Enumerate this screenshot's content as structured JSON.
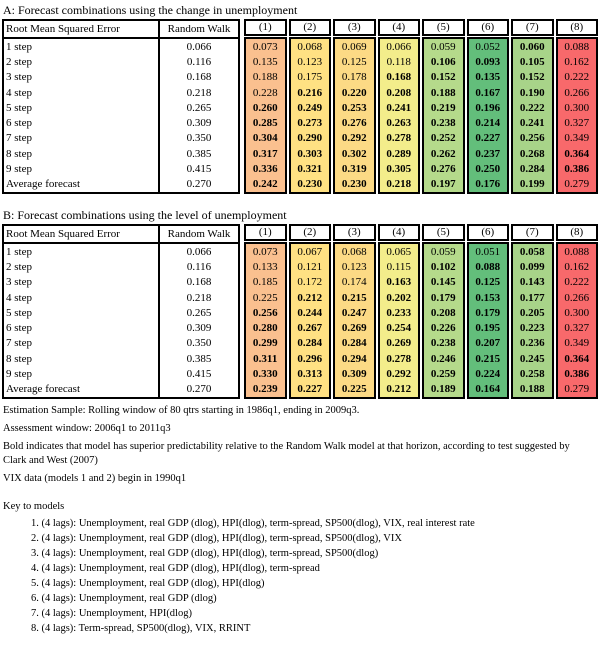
{
  "tables": [
    {
      "id": "A",
      "title": "A: Forecast combinations using the change in unemployment",
      "header": {
        "col1": "Root Mean Squared Error",
        "col2": "Random Walk"
      },
      "row_labels": [
        "1 step",
        "2 step",
        "3 step",
        "4 step",
        "5 step",
        "6 step",
        "7 step",
        "8 step",
        "9 step",
        "Average forecast"
      ],
      "random_walk": [
        "0.066",
        "0.116",
        "0.168",
        "0.218",
        "0.265",
        "0.309",
        "0.350",
        "0.385",
        "0.415",
        "0.270"
      ],
      "model_columns": [
        {
          "label": "(1)",
          "color": "#FAC08F",
          "values": [
            "0.073",
            "0.135",
            "0.188",
            "0.228",
            "0.260",
            "0.285",
            "0.304",
            "0.317",
            "0.336",
            "0.242"
          ],
          "bold": [
            false,
            false,
            false,
            false,
            true,
            true,
            true,
            true,
            true,
            true
          ]
        },
        {
          "label": "(2)",
          "color": "#FFE183",
          "values": [
            "0.068",
            "0.123",
            "0.175",
            "0.216",
            "0.249",
            "0.273",
            "0.290",
            "0.303",
            "0.321",
            "0.230"
          ],
          "bold": [
            false,
            false,
            false,
            true,
            true,
            true,
            true,
            true,
            true,
            true
          ]
        },
        {
          "label": "(3)",
          "color": "#FCDA85",
          "values": [
            "0.069",
            "0.125",
            "0.178",
            "0.220",
            "0.253",
            "0.276",
            "0.292",
            "0.302",
            "0.319",
            "0.230"
          ],
          "bold": [
            false,
            false,
            false,
            true,
            true,
            true,
            true,
            true,
            true,
            true
          ]
        },
        {
          "label": "(4)",
          "color": "#F3ED8B",
          "values": [
            "0.066",
            "0.118",
            "0.168",
            "0.208",
            "0.241",
            "0.263",
            "0.278",
            "0.289",
            "0.305",
            "0.218"
          ],
          "bold": [
            false,
            false,
            true,
            true,
            true,
            true,
            true,
            true,
            true,
            true
          ]
        },
        {
          "label": "(5)",
          "color": "#B5DA8B",
          "values": [
            "0.059",
            "0.106",
            "0.152",
            "0.188",
            "0.219",
            "0.238",
            "0.252",
            "0.262",
            "0.276",
            "0.197"
          ],
          "bold": [
            false,
            true,
            true,
            true,
            true,
            true,
            true,
            true,
            true,
            true
          ]
        },
        {
          "label": "(6)",
          "color": "#63BE7B",
          "values": [
            "0.052",
            "0.093",
            "0.135",
            "0.167",
            "0.196",
            "0.214",
            "0.227",
            "0.237",
            "0.250",
            "0.176"
          ],
          "bold": [
            false,
            true,
            true,
            true,
            true,
            true,
            true,
            true,
            true,
            true
          ]
        },
        {
          "label": "(7)",
          "color": "#A8D489",
          "values": [
            "0.060",
            "0.105",
            "0.152",
            "0.190",
            "0.222",
            "0.241",
            "0.256",
            "0.268",
            "0.284",
            "0.199"
          ],
          "bold": [
            true,
            true,
            true,
            true,
            true,
            true,
            true,
            true,
            true,
            true
          ]
        },
        {
          "label": "(8)",
          "color": "#F8696B",
          "values": [
            "0.088",
            "0.162",
            "0.222",
            "0.266",
            "0.300",
            "0.327",
            "0.349",
            "0.364",
            "0.386",
            "0.279"
          ],
          "bold": [
            false,
            false,
            false,
            false,
            false,
            false,
            false,
            true,
            true,
            false
          ]
        }
      ]
    },
    {
      "id": "B",
      "title": "B: Forecast combinations using the level of unemployment",
      "header": {
        "col1": "Root Mean Squared Error",
        "col2": "Random Walk"
      },
      "row_labels": [
        "1 step",
        "2 step",
        "3 step",
        "4 step",
        "5 step",
        "6 step",
        "7 step",
        "8 step",
        "9 step",
        "Average forecast"
      ],
      "random_walk": [
        "0.066",
        "0.116",
        "0.168",
        "0.218",
        "0.265",
        "0.309",
        "0.350",
        "0.385",
        "0.415",
        "0.270"
      ],
      "model_columns": [
        {
          "label": "(1)",
          "color": "#FAC08F",
          "values": [
            "0.073",
            "0.133",
            "0.185",
            "0.225",
            "0.256",
            "0.280",
            "0.299",
            "0.311",
            "0.330",
            "0.239"
          ],
          "bold": [
            false,
            false,
            false,
            false,
            true,
            true,
            true,
            true,
            true,
            true
          ]
        },
        {
          "label": "(2)",
          "color": "#FFE183",
          "values": [
            "0.067",
            "0.121",
            "0.172",
            "0.212",
            "0.244",
            "0.267",
            "0.284",
            "0.296",
            "0.313",
            "0.227"
          ],
          "bold": [
            false,
            false,
            false,
            true,
            true,
            true,
            true,
            true,
            true,
            true
          ]
        },
        {
          "label": "(3)",
          "color": "#FCDA85",
          "values": [
            "0.068",
            "0.123",
            "0.174",
            "0.215",
            "0.247",
            "0.269",
            "0.284",
            "0.294",
            "0.309",
            "0.225"
          ],
          "bold": [
            false,
            false,
            false,
            true,
            true,
            true,
            true,
            true,
            true,
            true
          ]
        },
        {
          "label": "(4)",
          "color": "#F3ED8B",
          "values": [
            "0.065",
            "0.115",
            "0.163",
            "0.202",
            "0.233",
            "0.254",
            "0.269",
            "0.278",
            "0.292",
            "0.212"
          ],
          "bold": [
            false,
            false,
            true,
            true,
            true,
            true,
            true,
            true,
            true,
            true
          ]
        },
        {
          "label": "(5)",
          "color": "#B5DA8B",
          "values": [
            "0.059",
            "0.102",
            "0.145",
            "0.179",
            "0.208",
            "0.226",
            "0.238",
            "0.246",
            "0.259",
            "0.189"
          ],
          "bold": [
            false,
            true,
            true,
            true,
            true,
            true,
            true,
            true,
            true,
            true
          ]
        },
        {
          "label": "(6)",
          "color": "#63BE7B",
          "values": [
            "0.051",
            "0.088",
            "0.125",
            "0.153",
            "0.179",
            "0.195",
            "0.207",
            "0.215",
            "0.224",
            "0.164"
          ],
          "bold": [
            false,
            true,
            true,
            true,
            true,
            true,
            true,
            true,
            true,
            true
          ]
        },
        {
          "label": "(7)",
          "color": "#A8D489",
          "values": [
            "0.058",
            "0.099",
            "0.143",
            "0.177",
            "0.205",
            "0.223",
            "0.236",
            "0.245",
            "0.258",
            "0.188"
          ],
          "bold": [
            true,
            true,
            true,
            true,
            true,
            true,
            true,
            true,
            true,
            true
          ]
        },
        {
          "label": "(8)",
          "color": "#F8696B",
          "values": [
            "0.088",
            "0.162",
            "0.222",
            "0.266",
            "0.300",
            "0.327",
            "0.349",
            "0.364",
            "0.386",
            "0.279"
          ],
          "bold": [
            false,
            false,
            false,
            false,
            false,
            false,
            false,
            true,
            true,
            false
          ]
        }
      ]
    }
  ],
  "footnotes": [
    "Estimation Sample: Rolling window of 80 qtrs starting in 1986q1, ending in 2009q3.",
    "Assessment window: 2006q1 to 2011q3",
    "Bold indicates that model has superior predictability relative to the Random Walk model at that horizon, according to test suggested by Clark and West (2007)",
    "VIX data (models 1 and 2) begin in 1990q1"
  ],
  "key": {
    "title": "Key to models",
    "items": [
      "1. (4 lags): Unemployment, real GDP (dlog),  HPI(dlog), term-spread, SP500(dlog), VIX, real interest rate",
      "2. (4 lags): Unemployment, real GDP (dlog),  HPI(dlog), term-spread, SP500(dlog), VIX",
      "3. (4 lags): Unemployment, real GDP (dlog),  HPI(dlog), term-spread, SP500(dlog)",
      "4. (4 lags): Unemployment, real GDP (dlog),  HPI(dlog), term-spread",
      "5. (4 lags): Unemployment, real GDP (dlog),  HPI(dlog)",
      "6. (4 lags): Unemployment, real GDP (dlog)",
      "7. (4 lags): Unemployment, HPI(dlog)",
      "8. (4 lags): Term-spread, SP500(dlog), VIX, RRINT"
    ]
  }
}
